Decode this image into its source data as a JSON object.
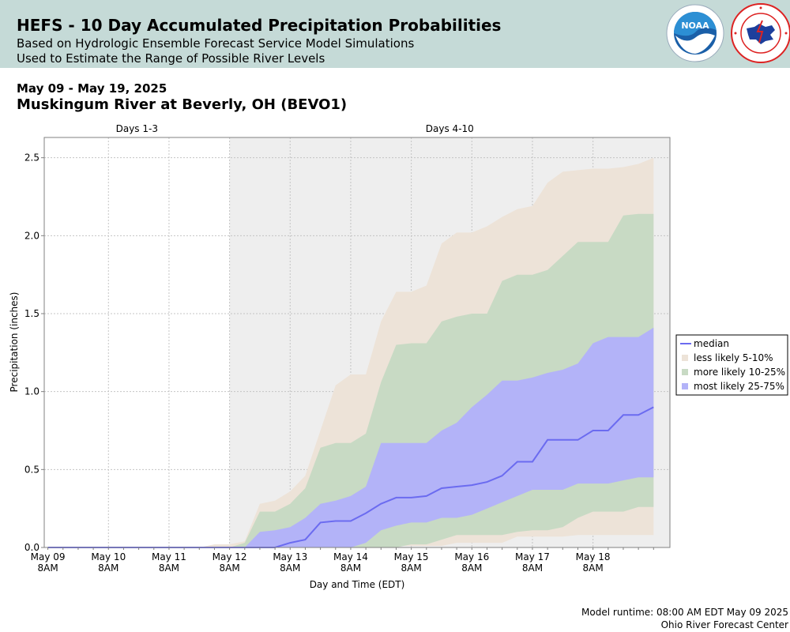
{
  "header": {
    "title": "HEFS - 10 Day Accumulated Precipitation Probabilities",
    "subtitle_line1": "Based on Hydrologic Ensemble Forecast Service Model Simulations",
    "subtitle_line2": "Used to Estimate the Range of Possible River Levels",
    "date_range": "May 09 - May 19, 2025",
    "location": "Muskingum River at Beverly, OH (BEVO1)"
  },
  "logos": {
    "noaa": "noaa-logo",
    "nws": "national-weather-service-logo"
  },
  "footer": {
    "runtime": "Model runtime: 08:00 AM EDT May 09 2025",
    "center": "Ohio River Forecast Center"
  },
  "colors": {
    "banner": "#c5dad7",
    "shaded_period": "#eeeeee",
    "less_likely": "#ede3d8",
    "more_likely": "#c8dac4",
    "most_likely": "#b3b3f8",
    "median": "#6b6bf0"
  },
  "chart_data": {
    "type": "area",
    "xlabel": "Day and Time (EDT)",
    "ylabel": "Precipitation (inches)",
    "ylim": [
      0,
      2.63
    ],
    "xlim": [
      -0.06,
      10.27
    ],
    "yticks": [
      0.0,
      0.5,
      1.0,
      1.5,
      2.0,
      2.5
    ],
    "ytick_labels": [
      "0.0",
      "0.5",
      "1.0",
      "1.5",
      "2.0",
      "2.5"
    ],
    "xticks": [
      0,
      1,
      2,
      3,
      4,
      5,
      6,
      7,
      8,
      9
    ],
    "xtick_labels": [
      [
        "May 09",
        "8AM"
      ],
      [
        "May 10",
        "8AM"
      ],
      [
        "May 11",
        "8AM"
      ],
      [
        "May 12",
        "8AM"
      ],
      [
        "May 13",
        "8AM"
      ],
      [
        "May 14",
        "8AM"
      ],
      [
        "May 15",
        "8AM"
      ],
      [
        "May 16",
        "8AM"
      ],
      [
        "May 17",
        "8AM"
      ],
      [
        "May 18",
        "8AM"
      ]
    ],
    "periods": [
      {
        "label": "Days 1-3",
        "start": -0.06,
        "end": 3.0,
        "shaded": false
      },
      {
        "label": "Days 4-10",
        "start": 3.0,
        "end": 10.27,
        "shaded": true
      }
    ],
    "grid": true,
    "legend_position": "right",
    "x": [
      0,
      0.25,
      0.5,
      0.75,
      1,
      1.25,
      1.5,
      1.75,
      2,
      2.25,
      2.5,
      2.75,
      3,
      3.25,
      3.5,
      3.75,
      4,
      4.25,
      4.5,
      4.75,
      5,
      5.25,
      5.5,
      5.75,
      6,
      6.25,
      6.5,
      6.75,
      7,
      7.25,
      7.5,
      7.75,
      8,
      8.25,
      8.5,
      8.75,
      9,
      9.25,
      9.5,
      9.75,
      10
    ],
    "series": [
      {
        "name": "less likely 5-10%",
        "kind": "band",
        "lower": [
          0,
          0,
          0,
          0,
          0,
          0,
          0,
          0,
          0,
          0,
          0,
          0,
          0,
          0,
          0,
          0,
          0,
          0,
          0,
          0,
          0,
          0,
          0,
          0.01,
          0.01,
          0.01,
          0.01,
          0.03,
          0.03,
          0.03,
          0.03,
          0.07,
          0.07,
          0.07,
          0.07,
          0.08,
          0.08,
          0.08,
          0.08,
          0.08,
          0.08
        ],
        "upper": [
          0,
          0,
          0,
          0,
          0,
          0,
          0,
          0,
          0,
          0,
          0,
          0.02,
          0.02,
          0.04,
          0.28,
          0.3,
          0.36,
          0.46,
          0.75,
          1.04,
          1.11,
          1.11,
          1.45,
          1.64,
          1.64,
          1.68,
          1.95,
          2.02,
          2.02,
          2.06,
          2.12,
          2.17,
          2.19,
          2.34,
          2.41,
          2.42,
          2.43,
          2.43,
          2.44,
          2.46,
          2.5
        ]
      },
      {
        "name": "more likely 10-25%",
        "kind": "band",
        "lower": [
          0,
          0,
          0,
          0,
          0,
          0,
          0,
          0,
          0,
          0,
          0,
          0,
          0,
          0,
          0,
          0,
          0,
          0,
          0,
          0,
          0,
          0,
          0,
          0,
          0.02,
          0.02,
          0.05,
          0.08,
          0.08,
          0.08,
          0.08,
          0.1,
          0.11,
          0.11,
          0.13,
          0.19,
          0.23,
          0.23,
          0.23,
          0.26,
          0.26
        ],
        "upper": [
          0,
          0,
          0,
          0,
          0,
          0,
          0,
          0,
          0,
          0,
          0,
          0,
          0,
          0.03,
          0.23,
          0.23,
          0.28,
          0.38,
          0.64,
          0.67,
          0.67,
          0.73,
          1.06,
          1.3,
          1.31,
          1.31,
          1.45,
          1.48,
          1.5,
          1.5,
          1.71,
          1.75,
          1.75,
          1.78,
          1.87,
          1.96,
          1.96,
          1.96,
          2.13,
          2.14,
          2.14
        ]
      },
      {
        "name": "most likely 25-75%",
        "kind": "band",
        "lower": [
          0,
          0,
          0,
          0,
          0,
          0,
          0,
          0,
          0,
          0,
          0,
          0,
          0,
          0,
          0,
          0,
          0,
          0,
          0,
          0,
          0,
          0.03,
          0.11,
          0.14,
          0.16,
          0.16,
          0.19,
          0.19,
          0.21,
          0.25,
          0.29,
          0.33,
          0.37,
          0.37,
          0.37,
          0.41,
          0.41,
          0.41,
          0.43,
          0.45,
          0.45
        ],
        "upper": [
          0,
          0,
          0,
          0,
          0,
          0,
          0,
          0,
          0,
          0,
          0,
          0,
          0,
          0,
          0.1,
          0.11,
          0.13,
          0.19,
          0.28,
          0.3,
          0.33,
          0.39,
          0.67,
          0.67,
          0.67,
          0.67,
          0.75,
          0.8,
          0.9,
          0.98,
          1.07,
          1.07,
          1.09,
          1.12,
          1.14,
          1.18,
          1.31,
          1.35,
          1.35,
          1.35,
          1.41
        ]
      },
      {
        "name": "median",
        "kind": "line",
        "values": [
          0,
          0,
          0,
          0,
          0,
          0,
          0,
          0,
          0,
          0,
          0,
          0,
          0,
          0,
          0,
          0,
          0.03,
          0.05,
          0.16,
          0.17,
          0.17,
          0.22,
          0.28,
          0.32,
          0.32,
          0.33,
          0.38,
          0.39,
          0.4,
          0.42,
          0.46,
          0.55,
          0.55,
          0.69,
          0.69,
          0.69,
          0.75,
          0.75,
          0.85,
          0.85,
          0.9
        ]
      }
    ]
  }
}
